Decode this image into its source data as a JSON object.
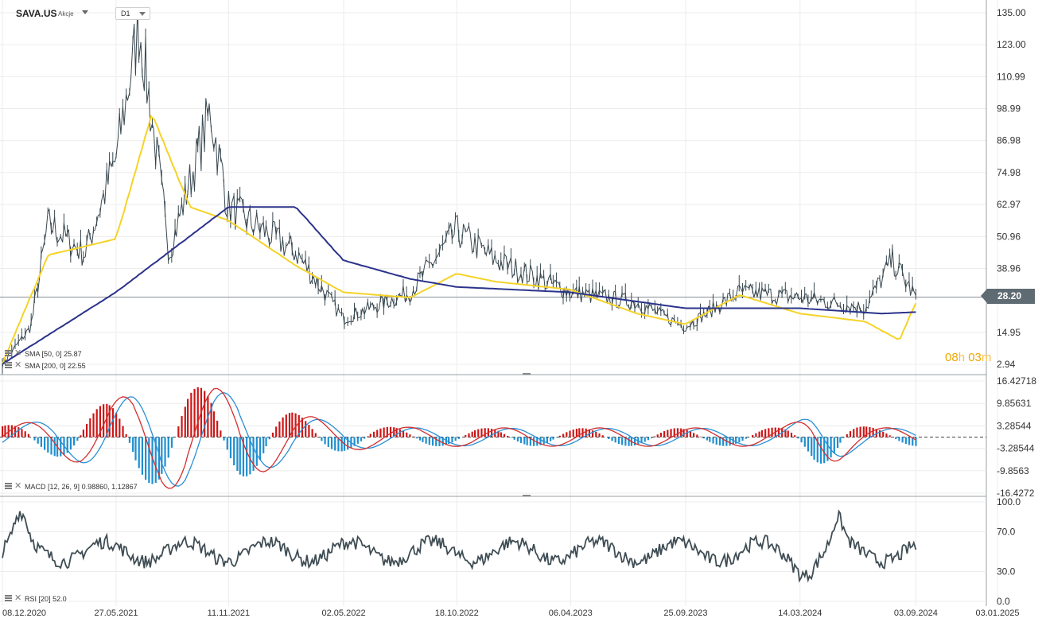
{
  "header": {
    "symbol": "SAVA.US",
    "symbol_type": "Akcje",
    "timeframe": "D1"
  },
  "price": {
    "last": "28.20",
    "countdown_h": "08",
    "countdown_h_unit": "h",
    "countdown_m": "03",
    "countdown_m_unit": "m"
  },
  "indicators": {
    "sma50_label": "SMA",
    "sma50_params": "[50, 0]",
    "sma50_value": "25.87",
    "sma200_label": "SMA",
    "sma200_params": "[200, 0]",
    "sma200_value": "22.55",
    "macd_label": "MACD",
    "macd_params": "[12, 26, 9]",
    "macd_value": "0.98860,",
    "macd_signal_value": "1.12867",
    "rsi_label": "RSI",
    "rsi_params": "[20]",
    "rsi_value": "52.0"
  },
  "colors": {
    "price": "#37474f",
    "sma50": "#f5d327",
    "sma200": "#2b338a",
    "macd_pos": "#cc1717",
    "macd_neg": "#1e8fcf",
    "macd_line": "#d32f2f",
    "signal_line": "#2a8fd6",
    "rsi": "#3f4d54",
    "grid": "#ececec",
    "badge": "#5f6b72",
    "countdown": "#f0a500"
  },
  "chart_data": [
    {
      "type": "line",
      "pane": "price",
      "x_ticks": [
        "08.12.2020",
        "27.05.2021",
        "11.11.2021",
        "02.05.2022",
        "18.10.2022",
        "06.04.2023",
        "25.09.2023",
        "14.03.2024",
        "03.09.2024",
        "03.01.2025"
      ],
      "y_ticks": [
        "135.00",
        "123.00",
        "110.99",
        "98.99",
        "86.98",
        "74.98",
        "62.97",
        "50.96",
        "38.96",
        "28.20",
        "14.95",
        "2.94"
      ],
      "ylim": [
        2.94,
        135.0
      ],
      "series": [
        {
          "name": "SMA [50, 0]",
          "x": [
            "2020-12-08",
            "2021-02-15",
            "2021-05-27",
            "2021-07-20",
            "2021-09-15",
            "2021-11-11",
            "2022-02-20",
            "2022-05-02",
            "2022-08-10",
            "2022-10-18",
            "2022-12-15",
            "2023-04-06",
            "2023-07-15",
            "2023-09-25",
            "2023-12-15",
            "2024-03-14",
            "2024-06-20",
            "2024-08-10",
            "2024-09-03"
          ],
          "values": [
            3.0,
            44,
            50,
            97,
            62,
            57,
            40,
            30,
            28,
            37,
            34,
            31,
            22,
            18,
            29,
            22,
            19,
            12,
            25.87
          ]
        },
        {
          "name": "SMA [200, 0]",
          "x": [
            "2020-12-08",
            "2021-05-27",
            "2021-11-11",
            "2022-02-20",
            "2022-05-02",
            "2022-08-10",
            "2022-10-18",
            "2023-04-06",
            "2023-09-25",
            "2024-03-14",
            "2024-07-15",
            "2024-09-03"
          ],
          "values": [
            3.0,
            30,
            62,
            62,
            42,
            35,
            32,
            30,
            24,
            24,
            22,
            22.55
          ]
        },
        {
          "name": "Close",
          "x": [
            "2020-12-08",
            "2021-01-20",
            "2021-02-15",
            "2021-04-10",
            "2021-05-27",
            "2021-07-01",
            "2021-08-15",
            "2021-10-15",
            "2021-11-11",
            "2022-02-20",
            "2022-05-02",
            "2022-08-10",
            "2022-10-18",
            "2022-12-15",
            "2023-04-06",
            "2023-07-15",
            "2023-09-25",
            "2023-12-15",
            "2024-03-14",
            "2024-06-20",
            "2024-07-30",
            "2024-09-03"
          ],
          "values": [
            3,
            17,
            56,
            44,
            80,
            131,
            45,
            98,
            62,
            45,
            20,
            30,
            53,
            42,
            30,
            26,
            17,
            30,
            28,
            24,
            42,
            28.2
          ]
        }
      ]
    },
    {
      "type": "bar",
      "pane": "macd",
      "title": "MACD [12, 26, 9]",
      "y_ticks": [
        "16.42718",
        "9.85631",
        "3.28544",
        "-3.28544",
        "-9.8563",
        "-16.4272"
      ],
      "ylim": [
        -16.4272,
        16.42718
      ],
      "last_macd": 0.9886,
      "last_signal": 1.12867
    },
    {
      "type": "line",
      "pane": "rsi",
      "title": "RSI [20]",
      "y_ticks": [
        "100.0",
        "70.0",
        "30.0",
        "0.0"
      ],
      "ylim": [
        0,
        100
      ],
      "last_value": 52.0
    }
  ]
}
